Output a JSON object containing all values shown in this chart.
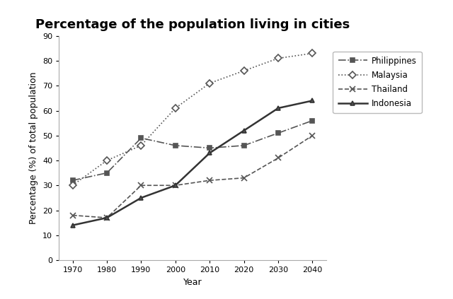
{
  "title": "Percentage of the population living in cities",
  "xlabel": "Year",
  "ylabel": "Percentage (%) of total population",
  "years": [
    1970,
    1980,
    1990,
    2000,
    2010,
    2020,
    2030,
    2040
  ],
  "series": {
    "Philippines": {
      "values": [
        32,
        35,
        49,
        46,
        45,
        46,
        51,
        56
      ],
      "color": "#555555",
      "linestyle": "-.",
      "marker": "s",
      "markersize": 5,
      "linewidth": 1.2,
      "markerfacecolor": "#555555"
    },
    "Malaysia": {
      "values": [
        30,
        40,
        46,
        61,
        71,
        76,
        81,
        83
      ],
      "color": "#555555",
      "linestyle": ":",
      "marker": "D",
      "markersize": 5,
      "linewidth": 1.2,
      "markerfacecolor": "white"
    },
    "Thailand": {
      "values": [
        18,
        17,
        30,
        30,
        32,
        33,
        41,
        50
      ],
      "color": "#555555",
      "linestyle": "--",
      "marker": "x",
      "markersize": 6,
      "linewidth": 1.2,
      "markerfacecolor": "#555555"
    },
    "Indonesia": {
      "values": [
        14,
        17,
        25,
        30,
        43,
        52,
        61,
        64
      ],
      "color": "#333333",
      "linestyle": "-",
      "marker": "^",
      "markersize": 5,
      "linewidth": 1.8,
      "markerfacecolor": "#555555"
    }
  },
  "ylim": [
    0,
    90
  ],
  "yticks": [
    0,
    10,
    20,
    30,
    40,
    50,
    60,
    70,
    80,
    90
  ],
  "background_color": "#ffffff",
  "title_fontsize": 13,
  "axis_label_fontsize": 9,
  "tick_fontsize": 8,
  "legend_fontsize": 8.5
}
